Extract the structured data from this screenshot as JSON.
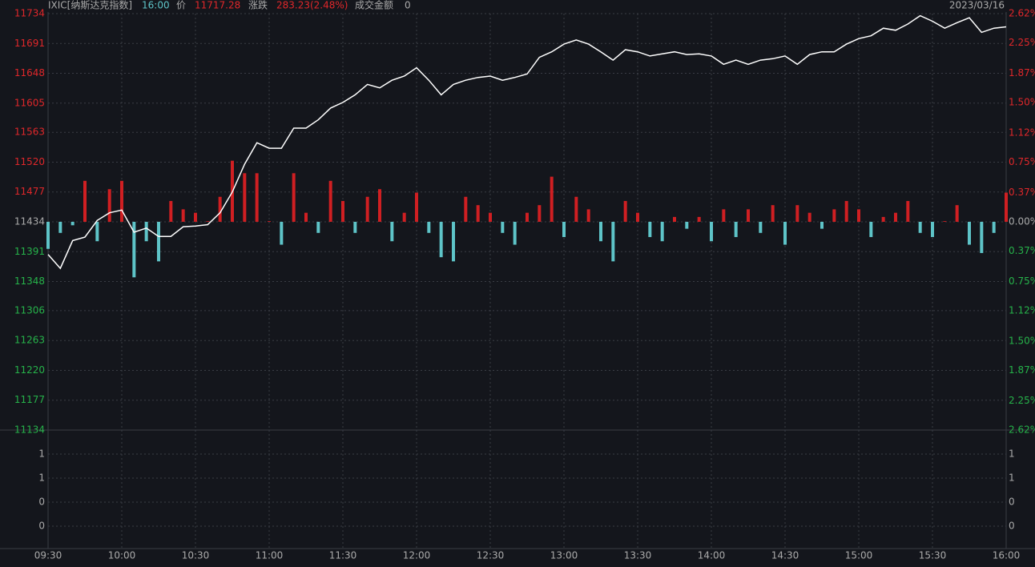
{
  "chart_data": {
    "type": "intraday",
    "header": {
      "symbol": "IXIC[纳斯达克指数]",
      "time": "16:00",
      "price_label": "价",
      "price": "11717.28",
      "change_label": "涨跌",
      "change": "283.23(2.48%)",
      "amount_label": "成交金额",
      "amount": "0",
      "date": "2023/03/16"
    },
    "prev_close": 11434.05,
    "x": [
      "09:30",
      "09:35",
      "09:40",
      "09:45",
      "09:50",
      "09:55",
      "10:00",
      "10:05",
      "10:10",
      "10:15",
      "10:20",
      "10:25",
      "10:30",
      "10:35",
      "10:40",
      "10:45",
      "10:50",
      "10:55",
      "11:00",
      "11:05",
      "11:10",
      "11:15",
      "11:20",
      "11:25",
      "11:30",
      "11:35",
      "11:40",
      "11:45",
      "11:50",
      "11:55",
      "12:00",
      "12:05",
      "12:10",
      "12:15",
      "12:20",
      "12:25",
      "12:30",
      "12:35",
      "12:40",
      "12:45",
      "12:50",
      "12:55",
      "13:00",
      "13:05",
      "13:10",
      "13:15",
      "13:20",
      "13:25",
      "13:30",
      "13:35",
      "13:40",
      "13:45",
      "13:50",
      "13:55",
      "14:00",
      "14:05",
      "14:10",
      "14:15",
      "14:20",
      "14:25",
      "14:30",
      "14:35",
      "14:40",
      "14:45",
      "14:50",
      "14:55",
      "15:00",
      "15:05",
      "15:10",
      "15:15",
      "15:20",
      "15:25",
      "15:30",
      "15:35",
      "15:40",
      "15:45",
      "15:50",
      "15:55",
      "16:00"
    ],
    "series": [
      {
        "name": "price",
        "kind": "line",
        "color": "#ffffff",
        "values": [
          11387,
          11367,
          11407,
          11412,
          11436,
          11447,
          11451,
          11419,
          11425,
          11413,
          11413,
          11427,
          11428,
          11430,
          11447,
          11477,
          11517,
          11548,
          11540,
          11540,
          11569,
          11569,
          11581,
          11598,
          11606,
          11617,
          11632,
          11627,
          11638,
          11644,
          11656,
          11638,
          11617,
          11632,
          11638,
          11642,
          11644,
          11638,
          11642,
          11647,
          11671,
          11679,
          11690,
          11696,
          11690,
          11679,
          11667,
          11682,
          11679,
          11673,
          11676,
          11679,
          11675,
          11676,
          11673,
          11661,
          11667,
          11661,
          11667,
          11669,
          11673,
          11661,
          11675,
          11679,
          11679,
          11690,
          11698,
          11702,
          11713,
          11710,
          11719,
          11731,
          11723,
          11713,
          11721,
          11728,
          11707,
          11713,
          11715
        ]
      },
      {
        "name": "strength",
        "kind": "bar",
        "color_up": "#d01f22",
        "color_down": "#5ec4c8",
        "values": [
          -39,
          -16,
          -5,
          59,
          -28,
          47,
          59,
          -80,
          -28,
          -57,
          30,
          18,
          13,
          1,
          36,
          88,
          70,
          70,
          1,
          -33,
          70,
          13,
          -16,
          59,
          30,
          -16,
          36,
          47,
          -28,
          13,
          42,
          -16,
          -51,
          -57,
          36,
          24,
          13,
          -16,
          -33,
          13,
          24,
          65,
          -22,
          36,
          18,
          -28,
          -57,
          30,
          13,
          -22,
          -28,
          7,
          -10,
          7,
          -28,
          18,
          -22,
          18,
          -16,
          24,
          -33,
          24,
          13,
          -10,
          18,
          30,
          18,
          -22,
          7,
          13,
          30,
          -16,
          -22,
          1,
          24,
          -33,
          -45,
          -16,
          42
        ]
      }
    ],
    "xticks": [
      "09:30",
      "10:00",
      "10:30",
      "11:00",
      "11:30",
      "12:00",
      "12:30",
      "13:00",
      "13:30",
      "14:00",
      "14:30",
      "15:00",
      "15:30",
      "16:00"
    ],
    "ylim": [
      11134,
      11734
    ],
    "yticks": [
      11734,
      11691,
      11648,
      11605,
      11563,
      11520,
      11477,
      11434,
      11391,
      11348,
      11306,
      11263,
      11220,
      11177,
      11134
    ],
    "y2lim": [
      -2.62,
      2.62
    ],
    "y2ticks": [
      {
        "value": 2.62,
        "label": "2.62%"
      },
      {
        "value": 2.25,
        "label": "2.25%"
      },
      {
        "value": 1.87,
        "label": "1.87%"
      },
      {
        "value": 1.5,
        "label": "1.50%"
      },
      {
        "value": 1.12,
        "label": "1.12%"
      },
      {
        "value": 0.75,
        "label": "0.75%"
      },
      {
        "value": 0.37,
        "label": "0.37%"
      },
      {
        "value": 0,
        "label": "0.00%"
      },
      {
        "value": -0.37,
        "label": "0.37%"
      },
      {
        "value": -0.75,
        "label": "0.75%"
      },
      {
        "value": -1.12,
        "label": "1.12%"
      },
      {
        "value": -1.5,
        "label": "1.50%"
      },
      {
        "value": -1.87,
        "label": "1.87%"
      },
      {
        "value": -2.25,
        "label": "2.25%"
      },
      {
        "value": -2.62,
        "label": "2.62%"
      }
    ],
    "volume_axis_labels": [
      "1",
      "1",
      "0",
      "0"
    ],
    "grid": true
  }
}
